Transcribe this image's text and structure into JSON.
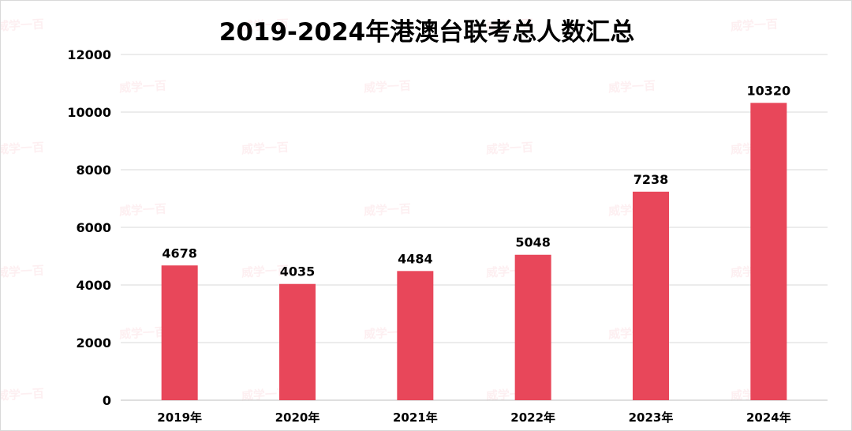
{
  "chart_data": {
    "type": "bar",
    "title": "2019-2024年港澳台联考总人数汇总",
    "categories": [
      "2019年",
      "2020年",
      "2021年",
      "2022年",
      "2023年",
      "2024年"
    ],
    "values": [
      4678,
      4035,
      4484,
      5048,
      7238,
      10320
    ],
    "data_labels": [
      "4678",
      "4035",
      "4484",
      "5048",
      "7238",
      "10320"
    ],
    "yticks": [
      "0",
      "2000",
      "4000",
      "6000",
      "8000",
      "10000",
      "12000"
    ],
    "ylim": [
      0,
      12000
    ],
    "xlabel": "",
    "ylabel": "",
    "grid": true,
    "legend": "none",
    "bar_color": "#e8475a"
  },
  "watermark": "威学一百"
}
